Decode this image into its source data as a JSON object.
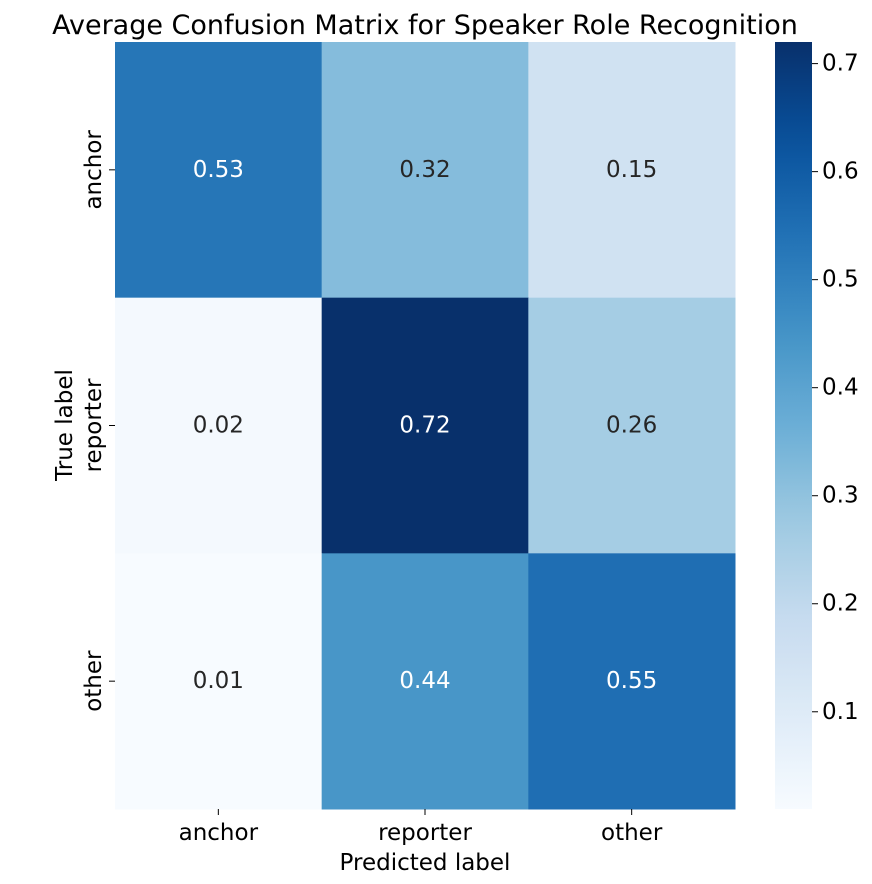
{
  "chart_data": {
    "type": "heatmap",
    "title": "Average Confusion Matrix for Speaker Role Recognition",
    "xlabel": "Predicted label",
    "ylabel": "True label",
    "x_categories": [
      "anchor",
      "reporter",
      "other"
    ],
    "y_categories": [
      "anchor",
      "reporter",
      "other"
    ],
    "values": [
      [
        0.53,
        0.32,
        0.15
      ],
      [
        0.02,
        0.72,
        0.26
      ],
      [
        0.01,
        0.44,
        0.55
      ]
    ],
    "value_labels": [
      [
        "0.53",
        "0.32",
        "0.15"
      ],
      [
        "0.02",
        "0.72",
        "0.26"
      ],
      [
        "0.01",
        "0.44",
        "0.55"
      ]
    ],
    "colormap": "Blues",
    "colorbar": {
      "range": [
        0.01,
        0.72
      ],
      "ticks": [
        0.1,
        0.2,
        0.3,
        0.4,
        0.5,
        0.6,
        0.7
      ],
      "tick_labels": [
        "0.1",
        "0.2",
        "0.3",
        "0.4",
        "0.5",
        "0.6",
        "0.7"
      ]
    },
    "grid": false,
    "legend": "colorbar-right"
  }
}
